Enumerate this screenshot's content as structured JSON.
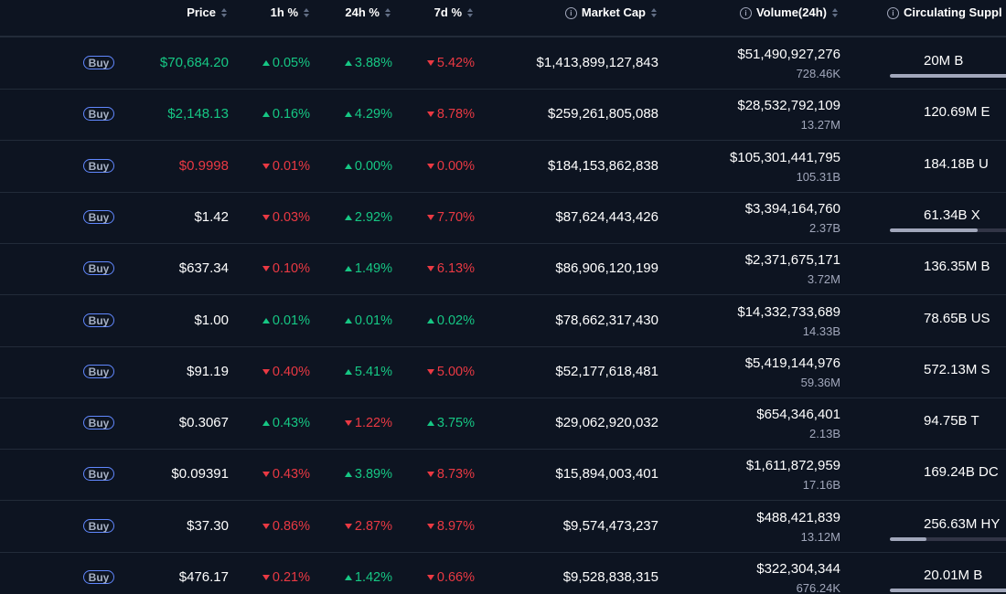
{
  "colors": {
    "background": "#0d1421",
    "up": "#16c784",
    "down": "#ea3943",
    "buy_border": "#6188ff",
    "muted": "#a1a7bb"
  },
  "header": {
    "price": "Price",
    "h1": "1h %",
    "h24": "24h %",
    "d7": "7d %",
    "market_cap": "Market Cap",
    "volume": "Volume(24h)",
    "circulating": "Circulating Suppl"
  },
  "buy_label": "Buy",
  "rows": [
    {
      "price": "$70,684.20",
      "price_dir": "up",
      "h1": "0.05%",
      "h1_dir": "up",
      "h24": "3.88%",
      "h24_dir": "up",
      "d7": "5.42%",
      "d7_dir": "down",
      "market_cap": "$1,413,899,127,843",
      "volume": "$51,490,927,276",
      "volume_sub": "728.46K",
      "circulating": "20M B",
      "supply_fill": 0.95
    },
    {
      "price": "$2,148.13",
      "price_dir": "up",
      "h1": "0.16%",
      "h1_dir": "up",
      "h24": "4.29%",
      "h24_dir": "up",
      "d7": "8.78%",
      "d7_dir": "down",
      "market_cap": "$259,261,805,088",
      "volume": "$28,532,792,109",
      "volume_sub": "13.27M",
      "circulating": "120.69M E",
      "supply_fill": null
    },
    {
      "price": "$0.9998",
      "price_dir": "down",
      "h1": "0.01%",
      "h1_dir": "down",
      "h24": "0.00%",
      "h24_dir": "up",
      "d7": "0.00%",
      "d7_dir": "down",
      "market_cap": "$184,153,862,838",
      "volume": "$105,301,441,795",
      "volume_sub": "105.31B",
      "circulating": "184.18B U",
      "supply_fill": null
    },
    {
      "price": "$1.42",
      "price_dir": "neutral",
      "h1": "0.03%",
      "h1_dir": "down",
      "h24": "2.92%",
      "h24_dir": "up",
      "d7": "7.70%",
      "d7_dir": "down",
      "market_cap": "$87,624,443,426",
      "volume": "$3,394,164,760",
      "volume_sub": "2.37B",
      "circulating": "61.34B X",
      "supply_fill": 0.6
    },
    {
      "price": "$637.34",
      "price_dir": "neutral",
      "h1": "0.10%",
      "h1_dir": "down",
      "h24": "1.49%",
      "h24_dir": "up",
      "d7": "6.13%",
      "d7_dir": "down",
      "market_cap": "$86,906,120,199",
      "volume": "$2,371,675,171",
      "volume_sub": "3.72M",
      "circulating": "136.35M B",
      "supply_fill": null
    },
    {
      "price": "$1.00",
      "price_dir": "neutral",
      "h1": "0.01%",
      "h1_dir": "up",
      "h24": "0.01%",
      "h24_dir": "up",
      "d7": "0.02%",
      "d7_dir": "up",
      "market_cap": "$78,662,317,430",
      "volume": "$14,332,733,689",
      "volume_sub": "14.33B",
      "circulating": "78.65B US",
      "supply_fill": null
    },
    {
      "price": "$91.19",
      "price_dir": "neutral",
      "h1": "0.40%",
      "h1_dir": "down",
      "h24": "5.41%",
      "h24_dir": "up",
      "d7": "5.00%",
      "d7_dir": "down",
      "market_cap": "$52,177,618,481",
      "volume": "$5,419,144,976",
      "volume_sub": "59.36M",
      "circulating": "572.13M S",
      "supply_fill": null
    },
    {
      "price": "$0.3067",
      "price_dir": "neutral",
      "h1": "0.43%",
      "h1_dir": "up",
      "h24": "1.22%",
      "h24_dir": "down",
      "d7": "3.75%",
      "d7_dir": "up",
      "market_cap": "$29,062,920,032",
      "volume": "$654,346,401",
      "volume_sub": "2.13B",
      "circulating": "94.75B T",
      "supply_fill": null
    },
    {
      "price": "$0.09391",
      "price_dir": "neutral",
      "h1": "0.43%",
      "h1_dir": "down",
      "h24": "3.89%",
      "h24_dir": "up",
      "d7": "8.73%",
      "d7_dir": "down",
      "market_cap": "$15,894,003,401",
      "volume": "$1,611,872,959",
      "volume_sub": "17.16B",
      "circulating": "169.24B DC",
      "supply_fill": null
    },
    {
      "price": "$37.30",
      "price_dir": "neutral",
      "h1": "0.86%",
      "h1_dir": "down",
      "h24": "2.87%",
      "h24_dir": "down",
      "d7": "8.97%",
      "d7_dir": "down",
      "market_cap": "$9,574,473,237",
      "volume": "$488,421,839",
      "volume_sub": "13.12M",
      "circulating": "256.63M HY",
      "supply_fill": 0.25
    },
    {
      "price": "$476.17",
      "price_dir": "neutral",
      "h1": "0.21%",
      "h1_dir": "down",
      "h24": "1.42%",
      "h24_dir": "up",
      "d7": "0.66%",
      "d7_dir": "down",
      "market_cap": "$9,528,838,315",
      "volume": "$322,304,344",
      "volume_sub": "676.24K",
      "circulating": "20.01M B",
      "supply_fill": 0.95
    }
  ]
}
